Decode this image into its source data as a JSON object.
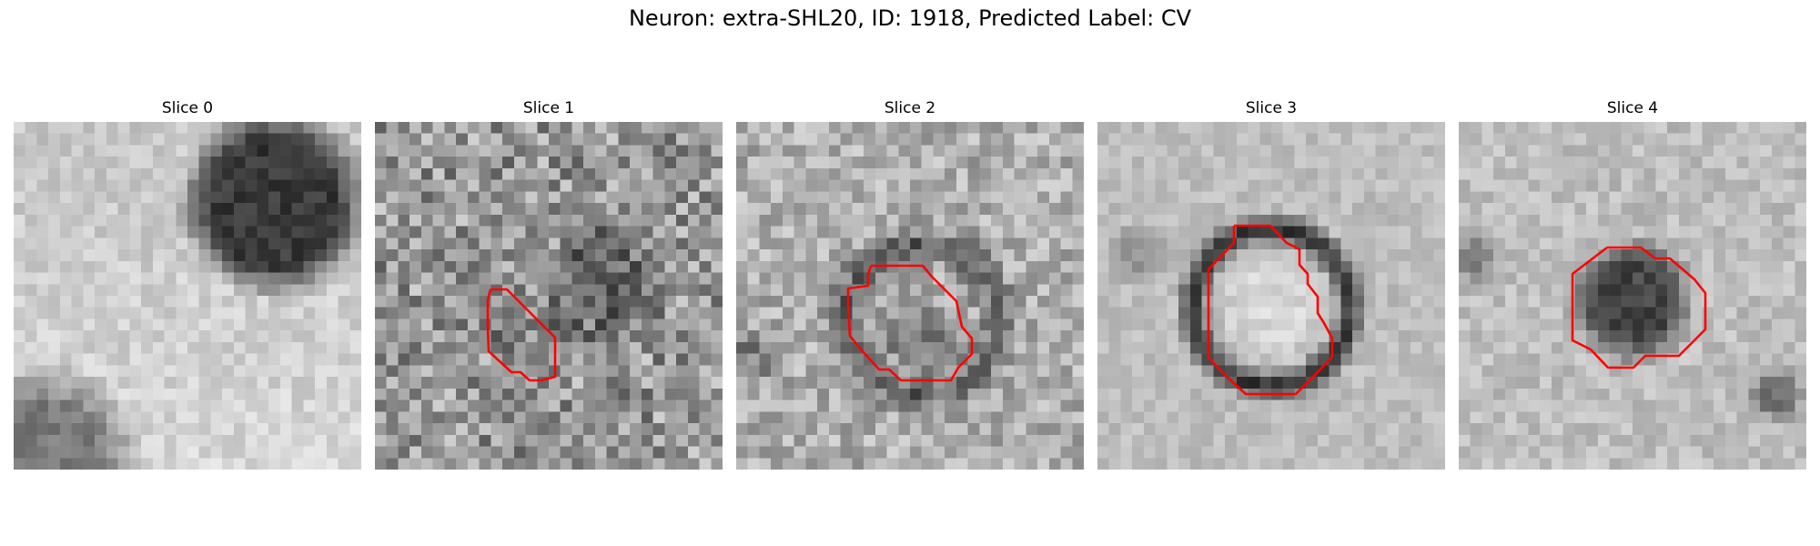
{
  "figure": {
    "title": "Neuron: extra-SHL20, ID: 1918, Predicted Label: CV"
  },
  "panels": [
    {
      "title": "Slice 0",
      "roi_outline": false
    },
    {
      "title": "Slice 1",
      "roi_outline": true
    },
    {
      "title": "Slice 2",
      "roi_outline": true
    },
    {
      "title": "Slice 3",
      "roi_outline": true
    },
    {
      "title": "Slice 4",
      "roi_outline": true
    }
  ],
  "colors": {
    "roi_outline": "#ff0000",
    "colormap": "grayscale"
  }
}
